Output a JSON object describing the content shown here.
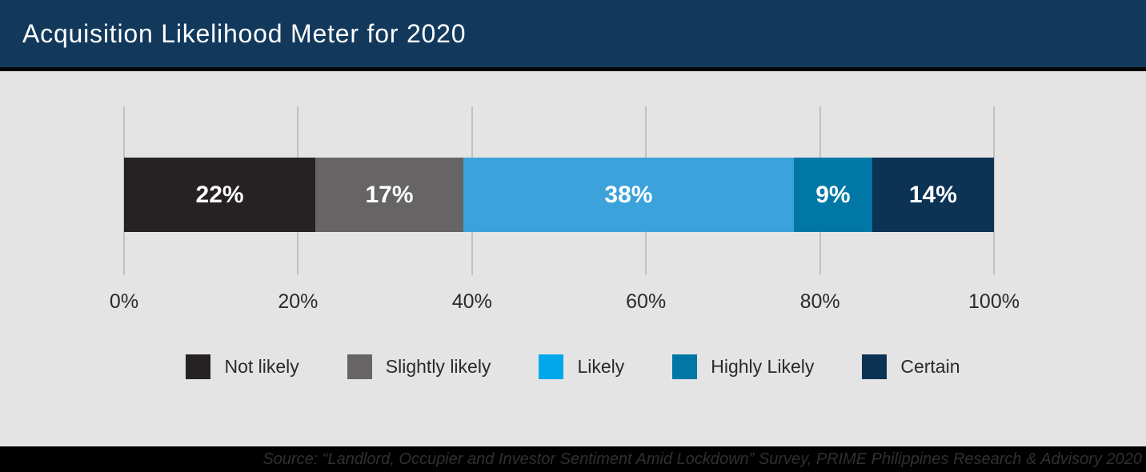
{
  "header": {
    "title": "Acquisition Likelihood Meter for 2020"
  },
  "chart_data": {
    "type": "bar",
    "variant": "horizontal-stacked",
    "title": "Acquisition Likelihood Meter for 2020",
    "categories": [
      "Not likely",
      "Slightly likely",
      "Likely",
      "Highly Likely",
      "Certain"
    ],
    "values": [
      22,
      17,
      38,
      9,
      14
    ],
    "data_labels": [
      "22%",
      "17%",
      "38%",
      "9%",
      "14%"
    ],
    "segment_colors": [
      "#262223",
      "#676465",
      "#3CA2DB",
      "#0077A5",
      "#0C3254"
    ],
    "legend": {
      "position": "bottom",
      "items": [
        {
          "label": "Not likely",
          "color": "#262223"
        },
        {
          "label": "Slightly likely",
          "color": "#676465"
        },
        {
          "label": "Likely",
          "color": "#00A8EA"
        },
        {
          "label": "Highly Likely",
          "color": "#0077A5"
        },
        {
          "label": "Certain",
          "color": "#0C3254"
        }
      ]
    },
    "x_axis": {
      "ticks": [
        "0%",
        "20%",
        "40%",
        "60%",
        "80%",
        "100%"
      ],
      "range": [
        0,
        100
      ],
      "grid": true
    }
  },
  "footer": {
    "source": "Source: “Landlord, Occupier and Investor Sentiment Amid Lockdown” Survey, PRIME Philippines Research & Advisory 2020"
  },
  "theme": {
    "header_bg": "#12395C",
    "body_bg": "#E5E4E4",
    "footer_bg": "#000000",
    "footer_text": "#302F34",
    "gridline": "#C2C1C1",
    "axis_text": "#2B2A2A",
    "bar_label_text": "#FFFFFF"
  }
}
